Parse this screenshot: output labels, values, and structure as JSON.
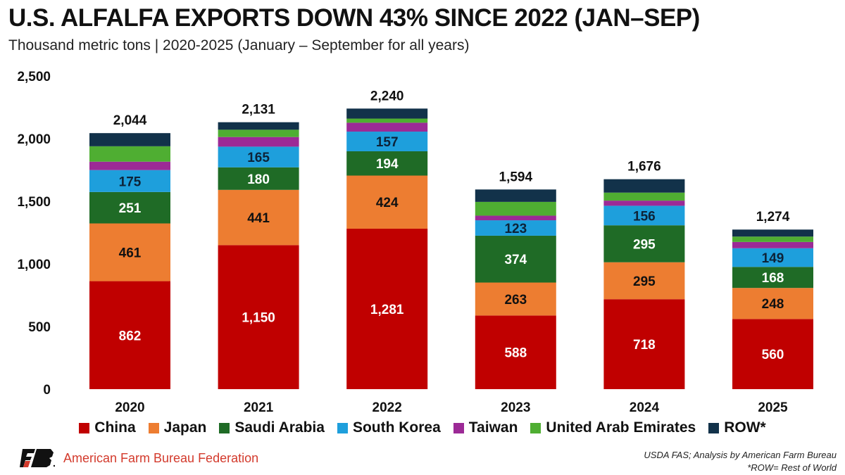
{
  "title": "U.S. ALFALFA EXPORTS DOWN 43% SINCE 2022 (JAN–SEP)",
  "subtitle": "Thousand metric tons | 2020-2025 (January – September for all years)",
  "chart_data": {
    "type": "stacked-bar",
    "title": "U.S. ALFALFA EXPORTS DOWN 43% SINCE 2022 (JAN–SEP)",
    "ylabel": "Thousand metric tons",
    "ylim": [
      0,
      2500
    ],
    "yticks": [
      "0",
      "500",
      "1,000",
      "1,500",
      "2,000",
      "2,500"
    ],
    "ytick_values": [
      0,
      500,
      1000,
      1500,
      2000,
      2500
    ],
    "grid": false,
    "legend": "bottom",
    "categories": [
      "2020",
      "2021",
      "2022",
      "2023",
      "2024",
      "2025"
    ],
    "totals": [
      2044,
      2131,
      2240,
      1594,
      1676,
      1274
    ],
    "total_labels": [
      "2,044",
      "2,131",
      "2,240",
      "1,594",
      "1,676",
      "1,274"
    ],
    "series": [
      {
        "name": "China",
        "color": "#c00000",
        "values": [
          862,
          1150,
          1281,
          588,
          718,
          560
        ],
        "labels": [
          "862",
          "1,150",
          "1,281",
          "588",
          "718",
          "560"
        ],
        "label_color": "#ffffff"
      },
      {
        "name": "Japan",
        "color": "#ed7d31",
        "values": [
          461,
          441,
          424,
          263,
          295,
          248
        ],
        "labels": [
          "461",
          "441",
          "424",
          "263",
          "295",
          "248"
        ],
        "label_color": "#111111"
      },
      {
        "name": "Saudi Arabia",
        "color": "#1f6b26",
        "values": [
          251,
          180,
          194,
          374,
          295,
          168
        ],
        "labels": [
          "251",
          "180",
          "194",
          "374",
          "295",
          "168"
        ],
        "label_color": "#ffffff"
      },
      {
        "name": "South Korea",
        "color": "#1e9fdc",
        "values": [
          175,
          165,
          157,
          123,
          156,
          149
        ],
        "labels": [
          "175",
          "165",
          "157",
          "123",
          "156",
          "149"
        ],
        "label_color": "#0d2338"
      },
      {
        "name": "Taiwan",
        "color": "#9c2a96",
        "values": [
          67,
          77,
          71,
          37,
          41,
          50
        ]
      },
      {
        "name": "United Arab Emirates",
        "color": "#4fae32",
        "values": [
          123,
          58,
          33,
          110,
          64,
          43
        ]
      },
      {
        "name": "ROW*",
        "color": "#12324a",
        "values": [
          105,
          60,
          80,
          99,
          107,
          56
        ]
      }
    ]
  },
  "footer": {
    "org": "American Farm Bureau Federation",
    "source": "USDA FAS; Analysis by American Farm Bureau",
    "note": "*ROW= Rest of World"
  }
}
